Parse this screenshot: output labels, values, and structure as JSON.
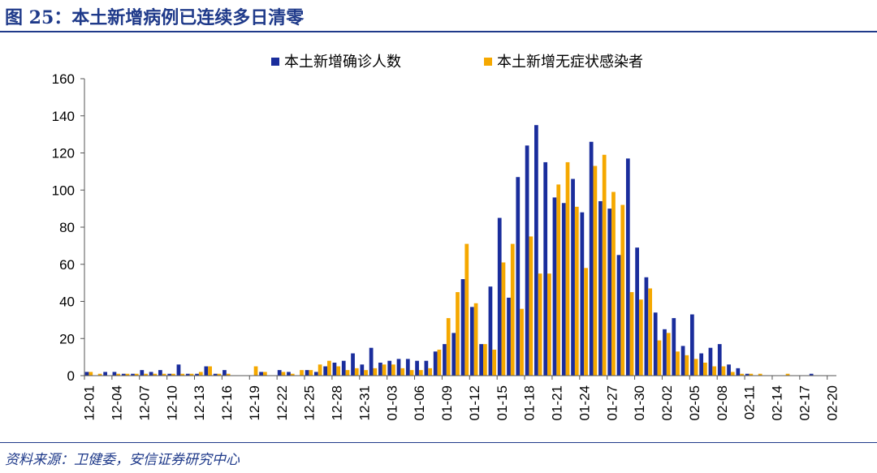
{
  "figure": {
    "title": "图 25：本土新增病例已连续多日清零",
    "source": "资料来源：卫健委，安信证券研究中心"
  },
  "colors": {
    "accent": "#1f3a8a",
    "series_confirmed": "#1a2d9c",
    "series_asymptomatic": "#f5a800"
  },
  "chart_data": {
    "type": "bar",
    "xlabel": "",
    "ylabel": "",
    "ylim": [
      0,
      160
    ],
    "yticks": [
      0,
      20,
      40,
      60,
      80,
      100,
      120,
      140,
      160
    ],
    "grid": false,
    "legend_position": "top-center",
    "categories": [
      "12-01",
      "12-02",
      "12-03",
      "12-04",
      "12-05",
      "12-06",
      "12-07",
      "12-08",
      "12-09",
      "12-10",
      "12-11",
      "12-12",
      "12-13",
      "12-14",
      "12-15",
      "12-16",
      "12-17",
      "12-18",
      "12-19",
      "12-20",
      "12-21",
      "12-22",
      "12-23",
      "12-24",
      "12-25",
      "12-26",
      "12-27",
      "12-28",
      "12-29",
      "12-30",
      "12-31",
      "01-01",
      "01-02",
      "01-03",
      "01-04",
      "01-05",
      "01-06",
      "01-07",
      "01-08",
      "01-09",
      "01-10",
      "01-11",
      "01-12",
      "01-13",
      "01-14",
      "01-15",
      "01-16",
      "01-17",
      "01-18",
      "01-19",
      "01-20",
      "01-21",
      "01-22",
      "01-23",
      "01-24",
      "01-25",
      "01-26",
      "01-27",
      "01-28",
      "01-29",
      "01-30",
      "01-31",
      "02-01",
      "02-02",
      "02-03",
      "02-04",
      "02-05",
      "02-06",
      "02-07",
      "02-08",
      "02-09",
      "02-10",
      "02-11",
      "02-12",
      "02-13",
      "02-14",
      "02-15",
      "02-16",
      "02-17",
      "02-18",
      "02-19",
      "02-20"
    ],
    "tick_labels": [
      "12-01",
      "12-04",
      "12-07",
      "12-10",
      "12-13",
      "12-16",
      "12-19",
      "12-22",
      "12-25",
      "12-28",
      "12-31",
      "01-03",
      "01-06",
      "01-09",
      "01-12",
      "01-15",
      "01-18",
      "01-21",
      "01-24",
      "01-27",
      "01-30",
      "02-02",
      "02-05",
      "02-08",
      "02-11",
      "02-14",
      "02-17",
      "02-20"
    ],
    "series": [
      {
        "name": "本土新增确诊人数",
        "values": [
          2,
          0,
          2,
          2,
          1,
          1,
          3,
          2,
          3,
          1,
          6,
          1,
          1,
          5,
          1,
          3,
          0,
          0,
          0,
          2,
          0,
          3,
          2,
          0,
          3,
          2,
          5,
          7,
          8,
          12,
          6,
          15,
          7,
          8,
          9,
          9,
          8,
          8,
          13,
          17,
          23,
          52,
          37,
          17,
          48,
          85,
          42,
          107,
          124,
          135,
          115,
          96,
          93,
          106,
          88,
          126,
          94,
          90,
          65,
          117,
          69,
          53,
          34,
          25,
          31,
          16,
          33,
          12,
          15,
          17,
          6,
          4,
          1,
          0,
          0,
          0,
          0,
          0,
          0,
          1,
          0,
          0
        ],
        "color": "#1a2d9c"
      },
      {
        "name": "本土新增无症状感染者",
        "values": [
          2,
          1,
          0,
          1,
          1,
          1,
          1,
          1,
          1,
          1,
          1,
          1,
          2,
          5,
          1,
          1,
          0,
          0,
          5,
          2,
          0,
          2,
          1,
          3,
          3,
          6,
          8,
          5,
          3,
          4,
          3,
          4,
          6,
          6,
          4,
          3,
          3,
          4,
          14,
          31,
          45,
          71,
          39,
          17,
          14,
          61,
          71,
          36,
          75,
          55,
          55,
          103,
          115,
          91,
          58,
          113,
          119,
          99,
          92,
          45,
          41,
          47,
          19,
          23,
          13,
          11,
          9,
          7,
          5,
          5,
          2,
          1,
          1,
          1,
          0,
          0,
          1,
          0,
          0,
          0,
          0,
          0
        ]
      }
    ]
  }
}
